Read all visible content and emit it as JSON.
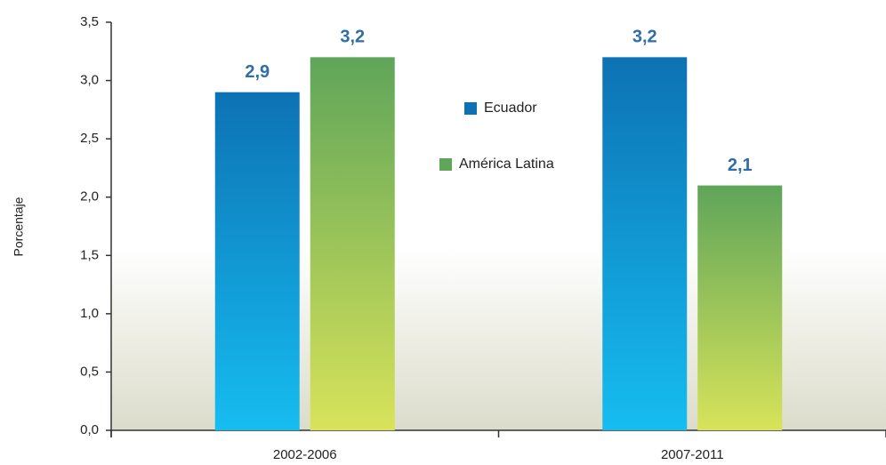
{
  "chart_data": {
    "type": "bar",
    "y_label": "Porcentaje",
    "categories": [
      "2002-2006",
      "2007-2011"
    ],
    "series": [
      {
        "name": "Ecuador",
        "color": "#0d72b4",
        "values": [
          2.9,
          3.2
        ],
        "value_labels": [
          "2,9",
          "3,2"
        ]
      },
      {
        "name": "América Latina",
        "color": "#5fa55a",
        "values": [
          3.2,
          2.1
        ],
        "value_labels": [
          "3,2",
          "2,1"
        ]
      }
    ],
    "ylim": [
      0,
      3.5
    ],
    "yticks": [
      {
        "value": 0,
        "label": "0,0"
      },
      {
        "value": 0.5,
        "label": "0,5"
      },
      {
        "value": 1,
        "label": "1,0"
      },
      {
        "value": 1.5,
        "label": "1,5"
      },
      {
        "value": 2,
        "label": "2,0"
      },
      {
        "value": 2.5,
        "label": "2,5"
      },
      {
        "value": 3,
        "label": "3,0"
      },
      {
        "value": 3.5,
        "label": "3,5"
      }
    ],
    "grid": false
  }
}
